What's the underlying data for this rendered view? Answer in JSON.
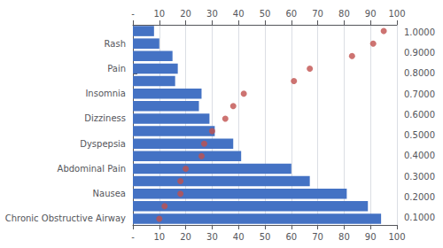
{
  "chart_data": {
    "type": "bar",
    "orientation": "horizontal",
    "categories": [
      "Chronic Obstructive Airway",
      null,
      "Nausea",
      null,
      "Abdominal Pain",
      null,
      "Dyspepsia",
      null,
      "Dizziness",
      null,
      "Insomnia",
      null,
      "Pain",
      null,
      "Rash",
      null
    ],
    "series": [
      {
        "type": "bar",
        "color": "#4472C4",
        "values": [
          94,
          89,
          81,
          67,
          60,
          41,
          38,
          31,
          29,
          25,
          26,
          16,
          17,
          15,
          10,
          8
        ]
      },
      {
        "type": "scatter",
        "color": "#C0504D",
        "marker": "circle",
        "values": [
          10,
          12,
          18,
          18,
          20,
          26,
          27,
          30,
          35,
          38,
          42,
          61,
          67,
          83,
          91,
          95
        ]
      }
    ],
    "xlim": [
      0,
      100
    ],
    "xticks": [
      {
        "value": 0,
        "label": "-"
      },
      10,
      20,
      30,
      40,
      50,
      60,
      70,
      80,
      90,
      100
    ],
    "y2lim": [
      0.064,
      1.036
    ],
    "y2ticks": [
      {
        "value": 0.064,
        "label": "-"
      },
      {
        "value": 0.1,
        "label": "0.1000"
      },
      {
        "value": 0.2,
        "label": "0.2000"
      },
      {
        "value": 0.3,
        "label": "0.3000"
      },
      {
        "value": 0.4,
        "label": "0.4000"
      },
      {
        "value": 0.5,
        "label": "0.5000"
      },
      {
        "value": 0.6,
        "label": "0.6000"
      },
      {
        "value": 0.7,
        "label": "0.7000"
      },
      {
        "value": 0.8,
        "label": "0.8000"
      },
      {
        "value": 0.9,
        "label": "0.9000"
      },
      {
        "value": 1.0,
        "label": "1.0000"
      }
    ],
    "grid": true
  }
}
